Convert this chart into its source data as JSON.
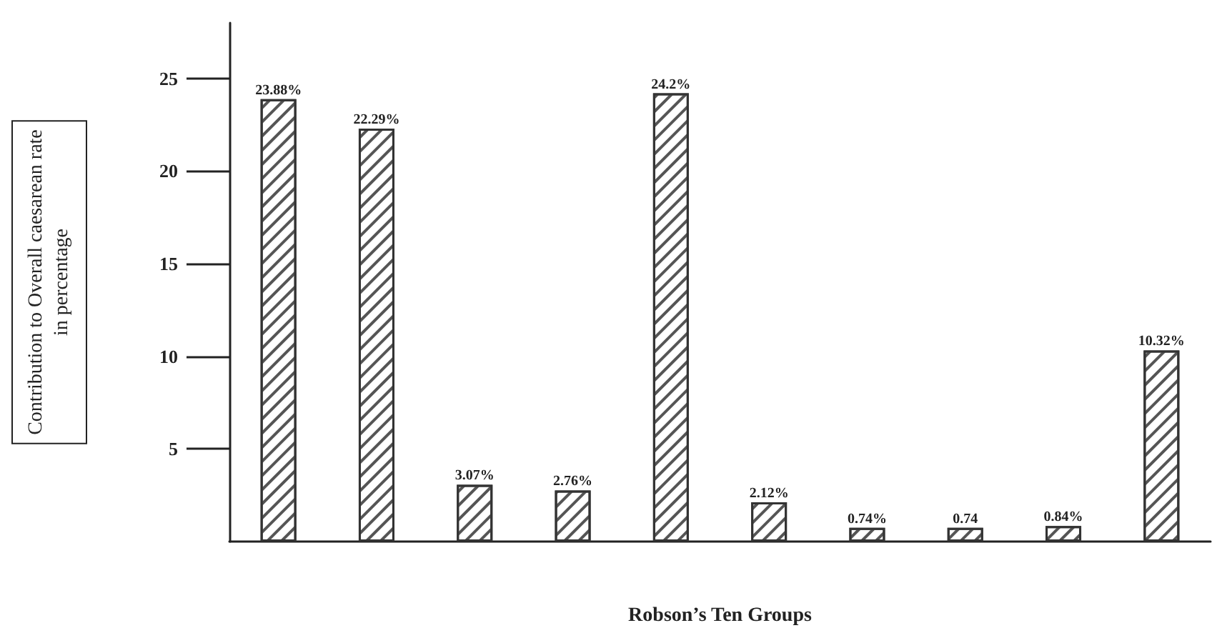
{
  "chart_data": {
    "type": "bar",
    "xlabel": "Robson’s Ten Groups",
    "ylabel": "Contribution to Overall caesarean rate in percentage",
    "categories": [
      null,
      null,
      null,
      null,
      null,
      null,
      null,
      null,
      null,
      null
    ],
    "values": [
      23.88,
      22.29,
      3.07,
      2.76,
      24.2,
      2.12,
      0.74,
      0.74,
      0.84,
      10.32
    ],
    "value_labels": [
      "23.88%",
      "22.29%",
      "3.07%",
      "2.76%",
      "24.2%",
      "2.12%",
      "0.74%",
      "0.74",
      "0.84%",
      "10.32%"
    ],
    "color": "#ffffff",
    "ylim": [
      0,
      28
    ],
    "yticks": [
      5,
      10,
      15,
      20,
      25
    ],
    "grid": false
  }
}
